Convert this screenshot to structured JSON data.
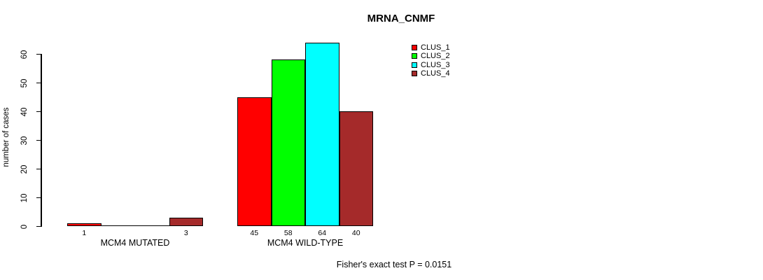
{
  "chart_data": {
    "type": "bar",
    "title": "MRNA_CNMF",
    "ylabel": "number of cases",
    "xlabel": "",
    "footnote": "Fisher's exact test P = 0.0151",
    "categories": [
      "MCM4 MUTATED",
      "MCM4 WILD-TYPE"
    ],
    "series": [
      {
        "name": "CLUS_1",
        "color": "#FF0000",
        "values": [
          1,
          45
        ]
      },
      {
        "name": "CLUS_2",
        "color": "#00FF00",
        "values": [
          0,
          58
        ]
      },
      {
        "name": "CLUS_3",
        "color": "#00FFFF",
        "values": [
          0,
          64
        ]
      },
      {
        "name": "CLUS_4",
        "color": "#A52A2A",
        "values": [
          3,
          40
        ]
      }
    ],
    "yticks": [
      0,
      10,
      20,
      30,
      40,
      50,
      60
    ],
    "ylim": [
      0,
      60
    ],
    "grid": false,
    "legend_position": "top-right",
    "bar_value_labels_shown": true,
    "zero_bars_drawn_as_line": true,
    "background_color": "#FFFFFF",
    "bar_border_color": "#000000"
  }
}
